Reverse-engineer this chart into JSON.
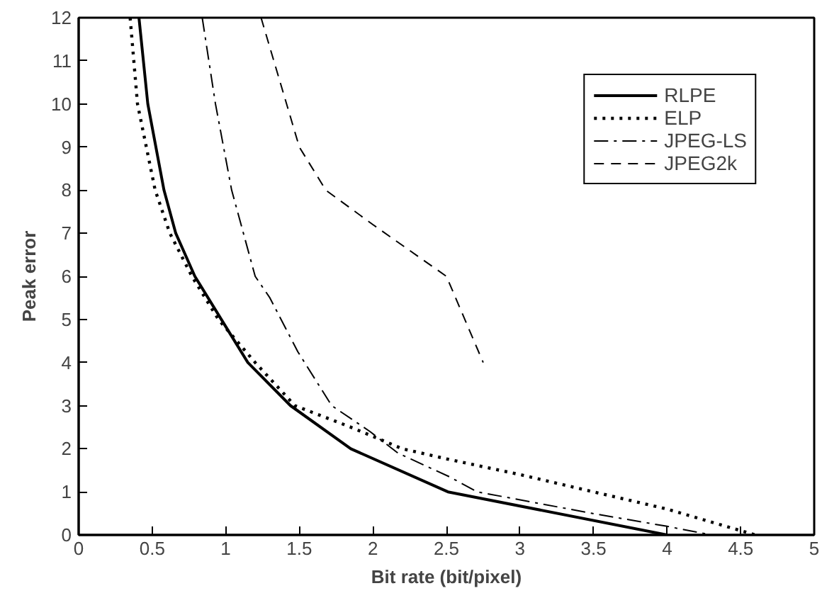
{
  "chart_data": {
    "type": "line",
    "xlabel": "Bit rate (bit/pixel)",
    "ylabel": "Peak error",
    "xlim": [
      0,
      5
    ],
    "ylim": [
      0,
      12
    ],
    "xticks": [
      0,
      0.5,
      1,
      1.5,
      2,
      2.5,
      3,
      3.5,
      4,
      4.5,
      5
    ],
    "yticks": [
      0,
      1,
      2,
      3,
      4,
      5,
      6,
      7,
      8,
      9,
      10,
      11,
      12
    ],
    "grid": false,
    "legend": "top right",
    "marker": "none",
    "series": [
      {
        "name": "RLPE",
        "color": "#000000",
        "line_style": "solid",
        "x": [
          0.41,
          0.47,
          0.58,
          0.66,
          0.79,
          0.97,
          1.15,
          1.44,
          1.85,
          2.51,
          4.0
        ],
        "values": [
          12,
          10,
          8,
          7,
          6,
          5,
          4,
          3,
          2,
          1,
          0
        ]
      },
      {
        "name": "ELP",
        "color": "#000000",
        "line_style": "dotted",
        "x": [
          0.35,
          0.4,
          0.52,
          0.62,
          0.77,
          0.95,
          1.2,
          1.47,
          1.85,
          2.2,
          2.52,
          3.0,
          4.0,
          4.6
        ],
        "values": [
          12,
          10,
          8,
          7,
          6,
          5,
          4,
          3,
          2.5,
          2,
          1.75,
          1.4,
          0.6,
          0
        ]
      },
      {
        "name": "JPEG-LS",
        "color": "#000000",
        "line_style": "dashdot",
        "x": [
          0.84,
          0.93,
          1.04,
          1.12,
          1.2,
          1.3,
          1.49,
          1.72,
          1.98,
          2.17,
          2.52,
          2.71,
          3.49,
          4.0,
          4.3
        ],
        "values": [
          12,
          10,
          8,
          7,
          6,
          5.5,
          4.25,
          3,
          2.4,
          1.9,
          1.35,
          1,
          0.5,
          0.2,
          0
        ]
      },
      {
        "name": "JPEG2k",
        "color": "#000000",
        "line_style": "dashed",
        "x": [
          1.24,
          1.5,
          1.68,
          2.0,
          2.5,
          2.75
        ],
        "values": [
          12,
          9,
          8,
          7.2,
          6,
          4
        ]
      }
    ]
  }
}
